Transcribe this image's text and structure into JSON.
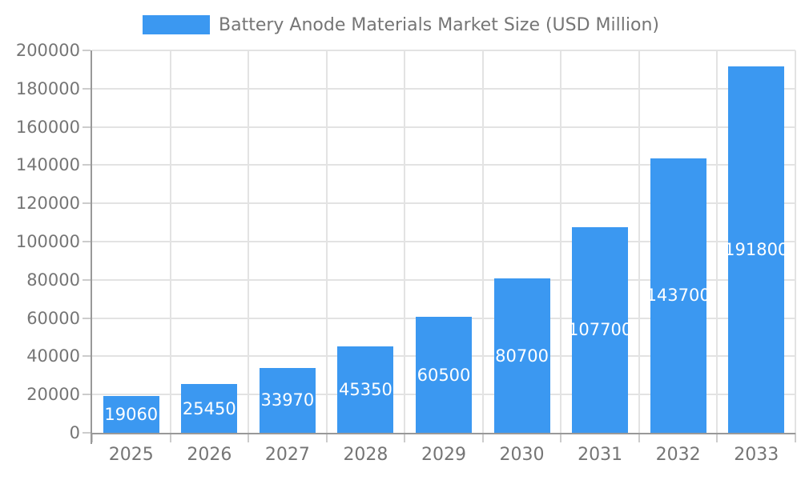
{
  "legend": {
    "label": "Battery Anode Materials Market Size (USD Million)"
  },
  "chart_data": {
    "type": "bar",
    "title": "Battery Anode Materials Market Size (USD Million)",
    "series_name": "Battery Anode Materials Market Size (USD Million)",
    "categories": [
      "2025",
      "2026",
      "2027",
      "2028",
      "2029",
      "2030",
      "2031",
      "2032",
      "2033"
    ],
    "values": [
      19060,
      25450,
      33970,
      45350,
      60500,
      80700,
      107700,
      143700,
      191800
    ],
    "xlabel": "",
    "ylabel": "",
    "ylim": [
      0,
      200000
    ],
    "ytick_step": 20000,
    "yticks": [
      0,
      20000,
      40000,
      60000,
      80000,
      100000,
      120000,
      140000,
      160000,
      180000,
      200000
    ],
    "grid": true,
    "legend_position": "top-center",
    "value_label_position": "inside-center",
    "colors": {
      "bar": "#3b98f1",
      "value_label": "#ffffff",
      "axis_line": "#999999",
      "gridline": "#e3e3e3",
      "tick": "#cccccc",
      "axis_text": "#757575",
      "background": "#ffffff"
    }
  }
}
